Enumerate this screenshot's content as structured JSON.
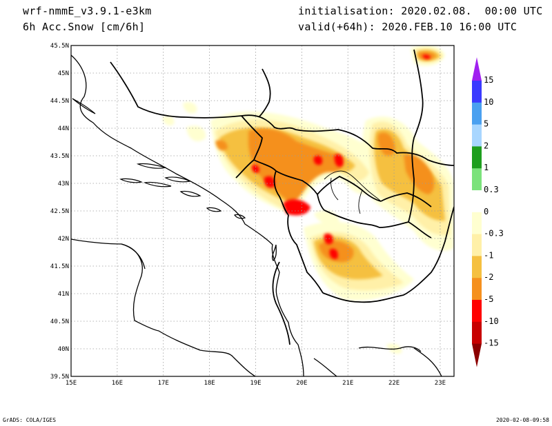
{
  "header": {
    "model": "wrf-nmmE_v3.9.1-e3km",
    "variable": "6h Acc.Snow [cm/6h]",
    "init": "initialisation: 2020.02.08.  00:00 UTC",
    "valid": "valid(+64h): 2020.FEB.10 16:00 UTC"
  },
  "footer": {
    "credit": "GrADS: COLA/IGES",
    "timestamp": "2020-02-08-09:58"
  },
  "map": {
    "lat_labels": [
      "45.5N",
      "45N",
      "44.5N",
      "44N",
      "43.5N",
      "43N",
      "42.5N",
      "42N",
      "41.5N",
      "41N",
      "40.5N",
      "40N",
      "39.5N"
    ],
    "lon_labels": [
      "15E",
      "16E",
      "17E",
      "18E",
      "19E",
      "20E",
      "21E",
      "22E",
      "23E"
    ],
    "lat_range": [
      39.5,
      45.5
    ],
    "lon_range": [
      15,
      23.3
    ],
    "grid": "dotted"
  },
  "legend": {
    "labels": [
      "15",
      "10",
      "5",
      "2",
      "1",
      "0.3",
      "0",
      "-0.3",
      "-1",
      "-2",
      "-5",
      "-10",
      "-15"
    ],
    "colors": [
      "#a020f0",
      "#3a3aff",
      "#4aa0f0",
      "#a8d6ff",
      "#1e9e1e",
      "#7be27b",
      "#ffffff",
      "#ffffd0",
      "#fff0a8",
      "#f5c040",
      "#f5901e",
      "#ff0000",
      "#c80000",
      "#8c0000"
    ]
  }
}
